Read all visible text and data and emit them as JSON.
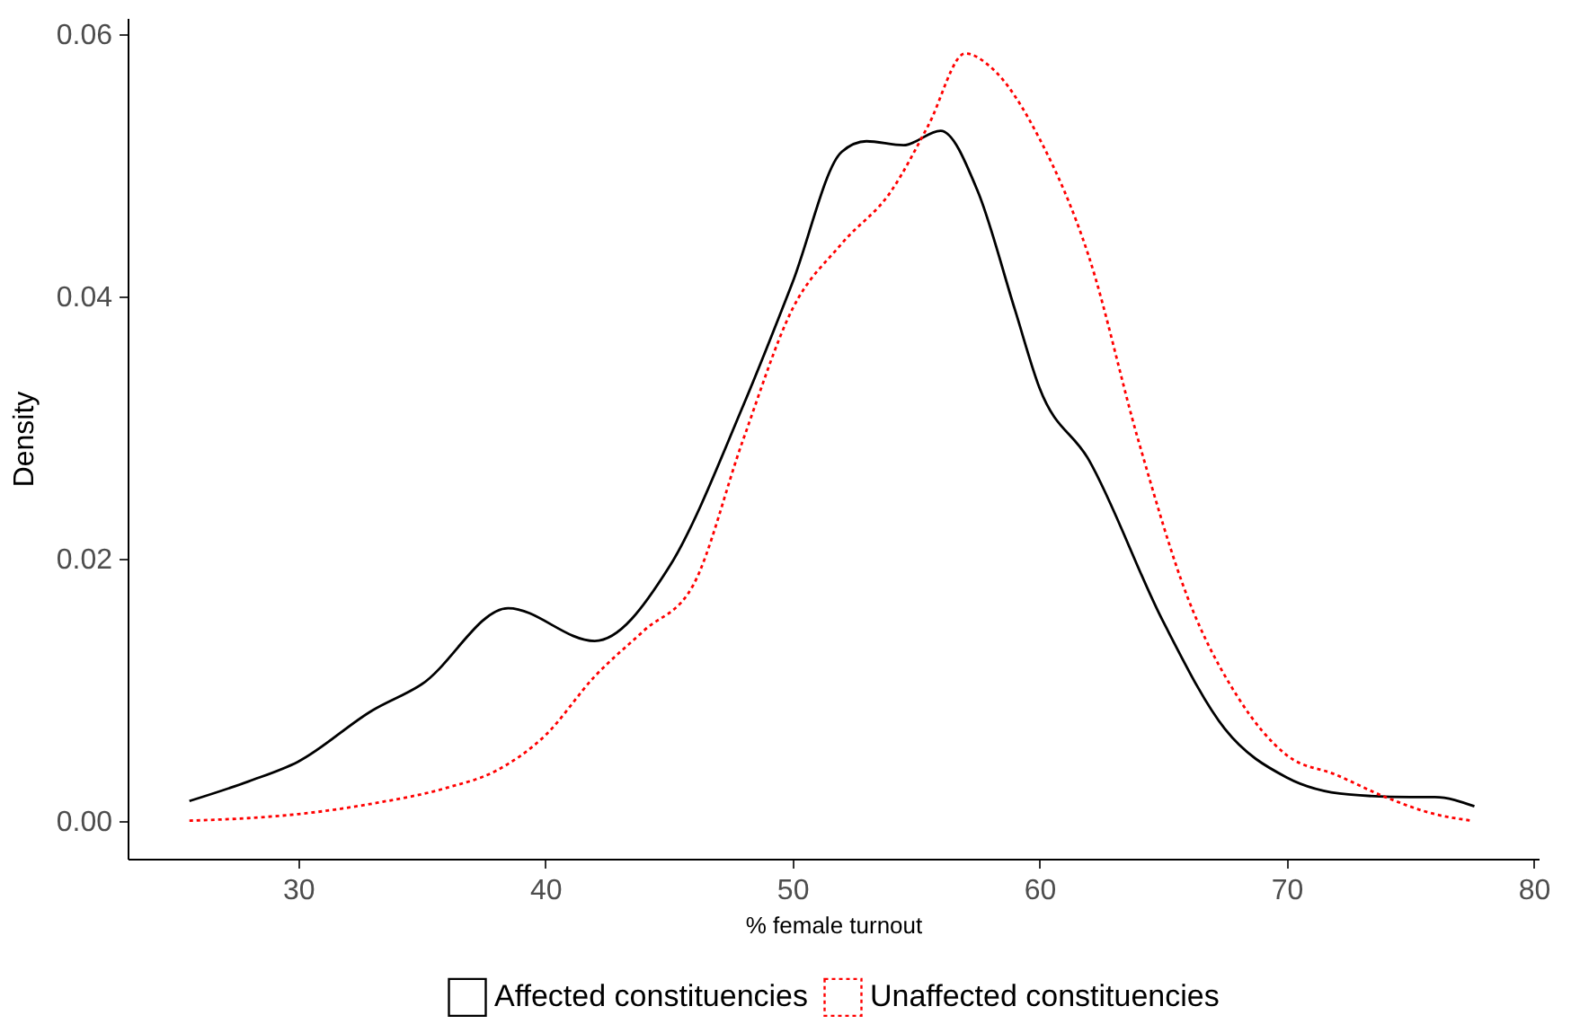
{
  "chart_data": {
    "type": "line",
    "xlabel": "% female turnout",
    "ylabel": "Density",
    "xlim": [
      23.1,
      80.2
    ],
    "ylim": [
      -0.0029,
      0.0612
    ],
    "xticks": [
      30,
      40,
      50,
      60,
      70,
      80
    ],
    "yticks": [
      {
        "value": 0,
        "label": "0.00"
      },
      {
        "value": 0.02,
        "label": "0.02"
      },
      {
        "value": 0.04,
        "label": "0.04"
      },
      {
        "value": 0.06,
        "label": "0.06"
      }
    ],
    "grid": false,
    "legend": "bottom",
    "marker": "none",
    "series": [
      {
        "name": "Affected constituencies",
        "color": "#000000",
        "line_style": "solid",
        "x": [
          25.6,
          28,
          30,
          33,
          35,
          38.5,
          42,
          45,
          48,
          50,
          52,
          53,
          54.5,
          56,
          57.5,
          59,
          60,
          62,
          65,
          67.5,
          70,
          72.5,
          75,
          76,
          77.6
        ],
        "values": [
          0.0015,
          0.003,
          0.0045,
          0.0084,
          0.0104,
          0.0162,
          0.0137,
          0.0193,
          0.0316,
          0.041,
          0.051,
          0.0518,
          0.0515,
          0.0526,
          0.048,
          0.039,
          0.033,
          0.0275,
          0.0152,
          0.007,
          0.0033,
          0.002,
          0.0018,
          0.0018,
          0.0011
        ]
      },
      {
        "name": "Unaffected constituencies",
        "color": "#ff0000",
        "line_style": "dotted",
        "x": [
          25.6,
          28,
          30,
          33,
          36,
          38,
          40,
          42,
          44,
          46,
          48,
          50,
          52,
          54,
          55.5,
          57,
          58,
          60,
          62,
          64,
          66,
          68,
          70,
          72,
          74,
          76,
          77.5
        ],
        "values": [
          0.0,
          0.0002,
          0.0005,
          0.0013,
          0.0025,
          0.0038,
          0.0065,
          0.011,
          0.0145,
          0.018,
          0.029,
          0.039,
          0.044,
          0.048,
          0.053,
          0.0585,
          0.0575,
          0.052,
          0.043,
          0.029,
          0.017,
          0.0095,
          0.005,
          0.0035,
          0.0018,
          0.0005,
          0.0
        ]
      }
    ]
  }
}
